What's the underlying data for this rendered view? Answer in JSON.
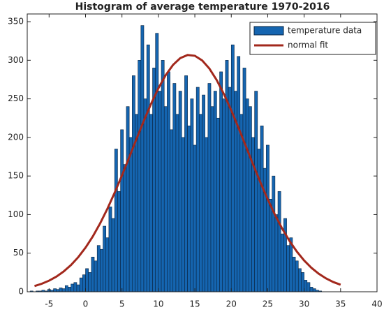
{
  "chart_data": {
    "type": "histogram",
    "title": "Histogram of average temperature 1970-2016",
    "bins": [
      -7.6,
      -7.2,
      -6.8,
      -6.4,
      -6,
      -5.6,
      -5.2,
      -4.8,
      -4.4,
      -4,
      -3.6,
      -3.2,
      -2.8,
      -2.4,
      -2,
      -1.6,
      -1.2,
      -0.8,
      -0.4,
      0,
      0.4,
      0.8,
      1.2,
      1.6,
      2,
      2.4,
      2.8,
      3.2,
      3.6,
      4,
      4.4,
      4.8,
      5.2,
      5.6,
      6,
      6.4,
      6.8,
      7.2,
      7.6,
      8,
      8.4,
      8.8,
      9.2,
      9.6,
      10,
      10.4,
      10.8,
      11.2,
      11.6,
      12,
      12.4,
      12.8,
      13.2,
      13.6,
      14,
      14.4,
      14.8,
      15.2,
      15.6,
      16,
      16.4,
      16.8,
      17.2,
      17.6,
      18,
      18.4,
      18.8,
      19.2,
      19.6,
      20,
      20.4,
      20.8,
      21.2,
      21.6,
      22,
      22.4,
      22.8,
      23.2,
      23.6,
      24,
      24.4,
      24.8,
      25.2,
      25.6,
      26,
      26.4,
      26.8,
      27.2,
      27.6,
      28,
      28.4,
      28.8,
      29.2,
      29.6,
      30,
      30.4,
      30.8,
      31.2,
      31.6,
      32,
      32.4
    ],
    "series": [
      {
        "name": "temperature data",
        "type": "histogram",
        "color": "#1565b0",
        "values": [
          1,
          0,
          1,
          1,
          2,
          1,
          3,
          2,
          4,
          3,
          5,
          4,
          8,
          6,
          10,
          12,
          9,
          18,
          22,
          30,
          25,
          45,
          40,
          60,
          55,
          85,
          70,
          110,
          95,
          185,
          130,
          210,
          165,
          240,
          200,
          280,
          230,
          300,
          345,
          250,
          320,
          230,
          290,
          335,
          260,
          300,
          240,
          285,
          210,
          270,
          230,
          260,
          200,
          280,
          215,
          250,
          190,
          265,
          230,
          255,
          200,
          270,
          240,
          260,
          225,
          285,
          250,
          300,
          265,
          320,
          260,
          305,
          230,
          290,
          250,
          240,
          200,
          260,
          185,
          215,
          160,
          190,
          120,
          150,
          100,
          130,
          75,
          95,
          60,
          70,
          45,
          40,
          30,
          25,
          15,
          12,
          6,
          4,
          2,
          1
        ]
      },
      {
        "name": "normal fit",
        "type": "line",
        "color": "#a2281c",
        "x": [
          -7,
          -6,
          -5,
          -4,
          -3,
          -2,
          -1,
          0,
          1,
          2,
          3,
          4,
          5,
          6,
          7,
          8,
          9,
          10,
          11,
          12,
          13,
          14,
          15,
          16,
          17,
          18,
          19,
          20,
          21,
          22,
          23,
          24,
          25,
          26,
          27,
          28,
          29,
          30,
          31,
          32,
          33,
          34,
          35
        ],
        "values": [
          7.4,
          10.4,
          14.4,
          19.6,
          26.3,
          34.6,
          44.8,
          57.2,
          71.7,
          88.6,
          107.5,
          128.4,
          150.8,
          174.3,
          198.1,
          221.6,
          243.7,
          263.7,
          280.7,
          293.9,
          302.8,
          306.8,
          305.8,
          299.8,
          289.2,
          274.3,
          256.0,
          235.1,
          212.3,
          188.6,
          164.8,
          141.7,
          119.8,
          99.7,
          81.6,
          65.7,
          52.0,
          40.5,
          31.0,
          23.4,
          17.3,
          12.6,
          9.1
        ]
      }
    ],
    "xlim": [
      -8,
      40
    ],
    "xticks": [
      -5,
      0,
      5,
      10,
      15,
      20,
      25,
      30,
      35,
      40
    ],
    "ylim": [
      0,
      360
    ],
    "yticks": [
      0,
      50,
      100,
      150,
      200,
      250,
      300,
      350
    ],
    "legend": "upper right"
  }
}
